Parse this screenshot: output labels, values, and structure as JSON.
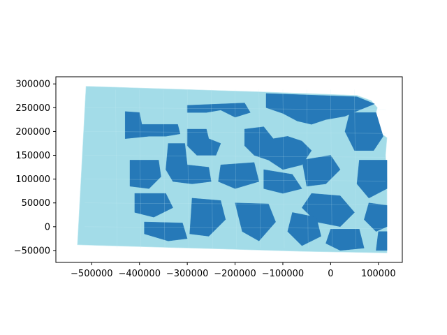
{
  "colors": {
    "light_region": "#a3dce8",
    "dark_region": "#2679b8",
    "boundary": "#c9ecf3",
    "axis": "#000000",
    "background": "#ffffff"
  },
  "chart_data": {
    "type": "map",
    "title": "",
    "xlabel": "",
    "ylabel": "",
    "xlim": [
      -575000,
      150000
    ],
    "ylim": [
      -75000,
      315000
    ],
    "x_ticks": [
      -500000,
      -400000,
      -300000,
      -200000,
      -100000,
      0,
      100000
    ],
    "x_tick_labels": [
      "−500000",
      "−400000",
      "−300000",
      "−200000",
      "−100000",
      "0",
      "100000"
    ],
    "y_ticks": [
      -50000,
      0,
      50000,
      100000,
      150000,
      200000,
      250000,
      300000
    ],
    "y_tick_labels": [
      "−50000",
      "0",
      "50000",
      "100000",
      "150000",
      "200000",
      "250000",
      "300000"
    ],
    "grid": false,
    "legend": "none",
    "categories": [
      "class-a",
      "class-b"
    ],
    "outline": [
      [
        -512000,
        295000
      ],
      [
        -135000,
        283000
      ],
      [
        55000,
        276000
      ],
      [
        85000,
        265000
      ],
      [
        98000,
        250000
      ],
      [
        92000,
        228000
      ],
      [
        100000,
        200000
      ],
      [
        118000,
        187000
      ],
      [
        115000,
        150000
      ],
      [
        118000,
        100000
      ],
      [
        118000,
        50000
      ],
      [
        118000,
        0
      ],
      [
        118000,
        -55000
      ],
      [
        -55000,
        -52000
      ],
      [
        -530000,
        -38000
      ]
    ],
    "regions_class_b": [
      [
        [
          -135000,
          280000
        ],
        [
          55000,
          273000
        ],
        [
          92000,
          258000
        ],
        [
          60000,
          245000
        ],
        [
          30000,
          232000
        ],
        [
          -10000,
          225000
        ],
        [
          -40000,
          215000
        ],
        [
          -70000,
          222000
        ],
        [
          -100000,
          238000
        ],
        [
          -135000,
          250000
        ]
      ],
      [
        [
          -300000,
          255000
        ],
        [
          -180000,
          260000
        ],
        [
          -168000,
          240000
        ],
        [
          -200000,
          230000
        ],
        [
          -230000,
          245000
        ],
        [
          -260000,
          240000
        ],
        [
          -300000,
          240000
        ]
      ],
      [
        [
          -430000,
          242000
        ],
        [
          -400000,
          240000
        ],
        [
          -395000,
          215000
        ],
        [
          -320000,
          215000
        ],
        [
          -315000,
          195000
        ],
        [
          -345000,
          190000
        ],
        [
          -380000,
          190000
        ],
        [
          -430000,
          185000
        ]
      ],
      [
        [
          -300000,
          205000
        ],
        [
          -260000,
          205000
        ],
        [
          -255000,
          185000
        ],
        [
          -230000,
          175000
        ],
        [
          -240000,
          150000
        ],
        [
          -280000,
          150000
        ],
        [
          -300000,
          170000
        ]
      ],
      [
        [
          -180000,
          205000
        ],
        [
          -140000,
          210000
        ],
        [
          -120000,
          185000
        ],
        [
          -90000,
          190000
        ],
        [
          -60000,
          180000
        ],
        [
          -40000,
          160000
        ],
        [
          -60000,
          130000
        ],
        [
          -100000,
          120000
        ],
        [
          -130000,
          140000
        ],
        [
          -160000,
          150000
        ],
        [
          -180000,
          170000
        ]
      ],
      [
        [
          -340000,
          175000
        ],
        [
          -305000,
          175000
        ],
        [
          -300000,
          130000
        ],
        [
          -255000,
          125000
        ],
        [
          -250000,
          95000
        ],
        [
          -290000,
          90000
        ],
        [
          -330000,
          95000
        ],
        [
          -345000,
          120000
        ]
      ],
      [
        [
          -420000,
          140000
        ],
        [
          -360000,
          140000
        ],
        [
          -355000,
          105000
        ],
        [
          -380000,
          80000
        ],
        [
          -420000,
          85000
        ]
      ],
      [
        [
          -230000,
          130000
        ],
        [
          -160000,
          135000
        ],
        [
          -150000,
          95000
        ],
        [
          -200000,
          80000
        ],
        [
          -235000,
          95000
        ]
      ],
      [
        [
          -140000,
          120000
        ],
        [
          -80000,
          110000
        ],
        [
          -60000,
          80000
        ],
        [
          -100000,
          70000
        ],
        [
          -140000,
          80000
        ]
      ],
      [
        [
          -60000,
          140000
        ],
        [
          0,
          150000
        ],
        [
          20000,
          120000
        ],
        [
          -10000,
          90000
        ],
        [
          -50000,
          85000
        ]
      ],
      [
        [
          -40000,
          70000
        ],
        [
          20000,
          65000
        ],
        [
          50000,
          30000
        ],
        [
          20000,
          0
        ],
        [
          -30000,
          10000
        ],
        [
          -60000,
          40000
        ]
      ],
      [
        [
          -410000,
          70000
        ],
        [
          -345000,
          70000
        ],
        [
          -330000,
          40000
        ],
        [
          -370000,
          20000
        ],
        [
          -410000,
          30000
        ]
      ],
      [
        [
          -390000,
          10000
        ],
        [
          -310000,
          8000
        ],
        [
          -300000,
          -25000
        ],
        [
          -340000,
          -30000
        ],
        [
          -390000,
          -15000
        ]
      ],
      [
        [
          -290000,
          60000
        ],
        [
          -230000,
          55000
        ],
        [
          -220000,
          15000
        ],
        [
          -255000,
          -20000
        ],
        [
          -295000,
          -15000
        ]
      ],
      [
        [
          -200000,
          50000
        ],
        [
          -130000,
          48000
        ],
        [
          -115000,
          10000
        ],
        [
          -150000,
          -30000
        ],
        [
          -185000,
          -10000
        ]
      ],
      [
        [
          -80000,
          30000
        ],
        [
          -30000,
          20000
        ],
        [
          -20000,
          -20000
        ],
        [
          -60000,
          -40000
        ],
        [
          -90000,
          -10000
        ]
      ],
      [
        [
          0,
          -5000
        ],
        [
          60000,
          -5000
        ],
        [
          70000,
          -45000
        ],
        [
          20000,
          -50000
        ],
        [
          -10000,
          -35000
        ]
      ],
      [
        [
          40000,
          240000
        ],
        [
          95000,
          240000
        ],
        [
          110000,
          190000
        ],
        [
          90000,
          160000
        ],
        [
          50000,
          160000
        ],
        [
          30000,
          200000
        ]
      ],
      [
        [
          60000,
          140000
        ],
        [
          118000,
          140000
        ],
        [
          118000,
          80000
        ],
        [
          80000,
          60000
        ],
        [
          55000,
          90000
        ]
      ],
      [
        [
          80000,
          50000
        ],
        [
          118000,
          45000
        ],
        [
          118000,
          0
        ],
        [
          95000,
          -10000
        ],
        [
          70000,
          15000
        ]
      ],
      [
        [
          100000,
          -10000
        ],
        [
          118000,
          -10000
        ],
        [
          118000,
          -50000
        ],
        [
          95000,
          -50000
        ]
      ]
    ]
  }
}
